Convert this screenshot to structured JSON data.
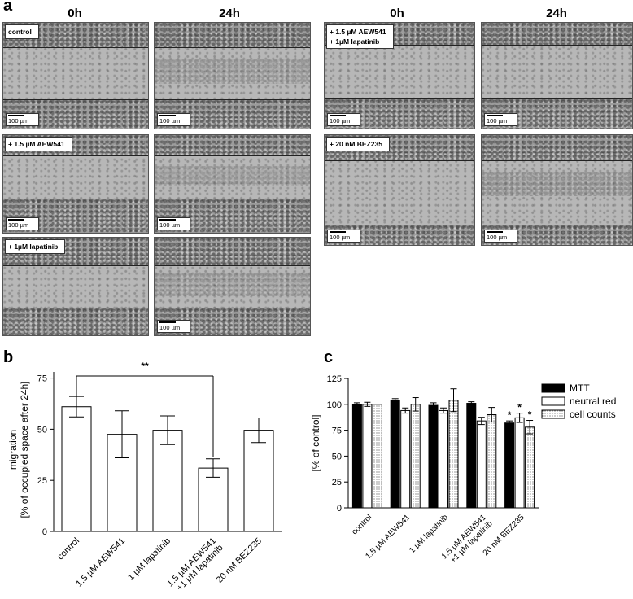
{
  "panel_a": {
    "letter": "a",
    "col_headers": [
      "0h",
      "24h",
      "0h",
      "24h"
    ],
    "scale_bar": "100 µm",
    "treatments_left": [
      {
        "label_lines": [
          "control"
        ]
      },
      {
        "label_lines": [
          "+ 1.5 µM AEW541"
        ]
      },
      {
        "label_lines": [
          "+ 1µM lapatinib"
        ]
      }
    ],
    "treatments_right": [
      {
        "label_lines": [
          "+ 1.5 µM AEW541",
          "+ 1µM lapatinib"
        ]
      },
      {
        "label_lines": [
          "+ 20 nM BEZ235"
        ]
      }
    ]
  },
  "panel_b": {
    "letter": "b"
  },
  "panel_c": {
    "letter": "c"
  },
  "chart_data": [
    {
      "type": "bar",
      "panel": "b",
      "categories": [
        "control",
        "1.5 µM AEW541",
        "1 µM lapatinib",
        "1.5 µM AEW541 +1 µM lapatinib",
        "20 nM BEZ235"
      ],
      "category_lines": [
        [
          "control"
        ],
        [
          "1.5 µM AEW541"
        ],
        [
          "1 µM lapatinib"
        ],
        [
          "1.5 µM AEW541",
          "+1 µM lapatinib"
        ],
        [
          "20 nM BEZ235"
        ]
      ],
      "values": [
        61,
        47.5,
        49.5,
        31,
        49.5
      ],
      "errors": [
        5,
        11.5,
        7,
        4.5,
        6
      ],
      "ylabel_lines": [
        "migration",
        "[% of occupied space after 24h]"
      ],
      "ylim": [
        0,
        80
      ],
      "yticks": [
        0,
        25,
        50,
        75
      ],
      "significance": {
        "from": 0,
        "to": 3,
        "label": "**"
      },
      "bar_fill": "#ffffff"
    },
    {
      "type": "bar",
      "panel": "c",
      "categories": [
        "control",
        "1.5 µM AEW541",
        "1 µM lapatinib",
        "1.5 µM AEW541 +1 µM lapatinib",
        "20 nM BEZ235"
      ],
      "category_lines": [
        [
          "control"
        ],
        [
          "1.5 µM AEW541"
        ],
        [
          "1 µM lapatinib"
        ],
        [
          "1.5 µM AEW541",
          "+1 µM lapatinib"
        ],
        [
          "20 nM BEZ235"
        ]
      ],
      "ylabel": "[% of control]",
      "ylim": [
        0,
        125
      ],
      "yticks": [
        0,
        25,
        50,
        75,
        100,
        125
      ],
      "legend_position": "top-right",
      "series": [
        {
          "name": "MTT",
          "values": [
            100,
            104,
            99,
            101,
            82
          ],
          "errors": [
            1.5,
            1.5,
            2.5,
            1.5,
            2
          ],
          "fill": "#000000",
          "stars": [
            false,
            false,
            false,
            false,
            true
          ]
        },
        {
          "name": "neutral red",
          "values": [
            100,
            94,
            94,
            84,
            87
          ],
          "errors": [
            2,
            2.5,
            2.5,
            3.5,
            4.5
          ],
          "fill": "#ffffff",
          "stars": [
            false,
            false,
            false,
            false,
            true
          ]
        },
        {
          "name": "cell counts",
          "values": [
            100,
            100,
            104,
            90,
            78
          ],
          "errors": [
            0,
            6.5,
            11,
            7,
            6.5
          ],
          "fill": "dotted",
          "stars": [
            false,
            false,
            false,
            false,
            true
          ]
        }
      ],
      "star_label": "*"
    }
  ]
}
